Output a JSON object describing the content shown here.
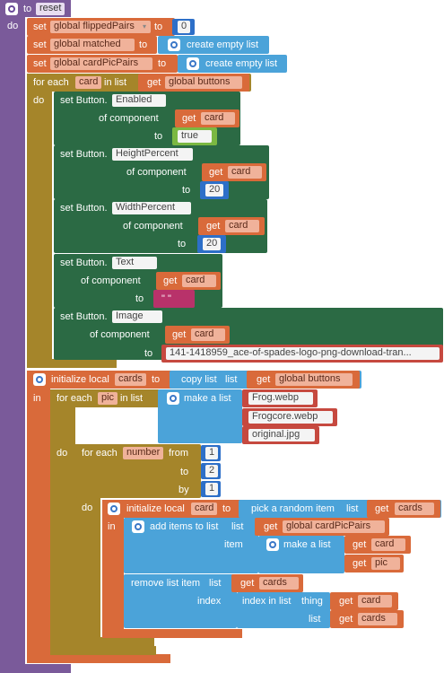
{
  "proc": {
    "to": "to",
    "name": "reset",
    "do": "do"
  },
  "set1": {
    "set": "set",
    "var": "global flippedPairs",
    "to": "to",
    "value": "0"
  },
  "set2": {
    "set": "set",
    "var": "global matched",
    "to": "to",
    "value": "create empty list"
  },
  "set3": {
    "set": "set",
    "var": "global cardPicPairs",
    "to": "to",
    "value": "create empty list"
  },
  "foreach1": {
    "for_each": "for each",
    "item": "card",
    "in_list": "in list",
    "get": "get",
    "list": "global buttons",
    "do": "do"
  },
  "prop1": {
    "set": "set Button.",
    "prop": "Enabled",
    "of_component": "of component",
    "get": "get",
    "comp": "card",
    "to": "to",
    "value": "true"
  },
  "prop2": {
    "set": "set Button.",
    "prop": "HeightPercent",
    "of_component": "of component",
    "get": "get",
    "comp": "card",
    "to": "to",
    "value": "20"
  },
  "prop3": {
    "set": "set Button.",
    "prop": "WidthPercent",
    "of_component": "of component",
    "get": "get",
    "comp": "card",
    "to": "to",
    "value": "20"
  },
  "prop4": {
    "set": "set Button.",
    "prop": "Text",
    "of_component": "of component",
    "get": "get",
    "comp": "card",
    "to": "to",
    "value": "\" \""
  },
  "prop5": {
    "set": "set Button.",
    "prop": "Image",
    "of_component": "of component",
    "get": "get",
    "comp": "card",
    "to": "to",
    "value": "141-1418959_ace-of-spades-logo-png-download-tran..."
  },
  "local1": {
    "init": "initialize local",
    "name": "cards",
    "to": "to",
    "copy": "copy list",
    "list": "list",
    "get": "get",
    "src": "global buttons",
    "in": "in"
  },
  "foreach2": {
    "for_each": "for each",
    "item": "pic",
    "in_list": "in list",
    "make": "make a list",
    "items": [
      "Frog.webp",
      "Frogcore.webp",
      "original.jpg"
    ],
    "do": "do"
  },
  "fornum": {
    "for_each": "for each",
    "item": "number",
    "from": "from",
    "from_v": "1",
    "to": "to",
    "to_v": "2",
    "by": "by",
    "by_v": "1",
    "do": "do"
  },
  "local2": {
    "init": "initialize local",
    "name": "card",
    "to": "to",
    "pick": "pick a random item",
    "list": "list",
    "get": "get",
    "src": "cards",
    "in": "in"
  },
  "add": {
    "label": "add items to list",
    "list": "list",
    "get": "get",
    "list_v": "global cardPicPairs",
    "item": "item",
    "make": "make a list",
    "get1": "get",
    "v1": "card",
    "get2": "get",
    "v2": "pic"
  },
  "remove": {
    "label": "remove list item",
    "list": "list",
    "get": "get",
    "list_v": "cards",
    "index": "index",
    "idx": "index in list",
    "thing": "thing",
    "get1": "get",
    "v1": "card",
    "list2": "list",
    "get2": "get",
    "v2": "cards"
  }
}
